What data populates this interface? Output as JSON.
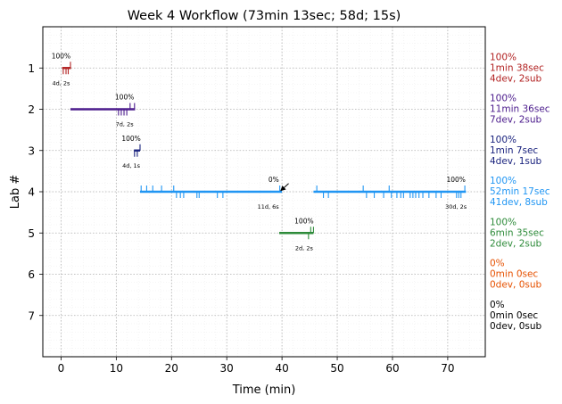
{
  "chart_data": {
    "type": "timeline",
    "title": "Week 4 Workflow (73min 13sec; 58d; 15s)",
    "xlabel": "Time (min)",
    "ylabel": "Lab #",
    "xlim": [
      -3.3,
      76.8
    ],
    "ylim": [
      8.0,
      0.0
    ],
    "xticks": [
      0,
      10,
      20,
      30,
      40,
      50,
      60,
      70
    ],
    "yticks": [
      1,
      2,
      3,
      4,
      5,
      6,
      7
    ],
    "grid": true,
    "labs": [
      {
        "lab": 1,
        "color": "#b22222",
        "segments": [
          [
            0.2,
            1.8
          ]
        ],
        "ticks": [
          {
            "x": 0.4,
            "dir": "down"
          },
          {
            "x": 0.9,
            "dir": "down"
          },
          {
            "x": 1.3,
            "dir": "down"
          },
          {
            "x": 1.7,
            "dir": "up"
          }
        ],
        "annotations": [
          {
            "text": "100%",
            "x": 0.0,
            "pos": "above"
          },
          {
            "text": "4d, 2s",
            "x": 0.0,
            "pos": "below"
          }
        ],
        "summary": [
          "100%",
          "1min 38sec",
          "4dev, 2sub"
        ]
      },
      {
        "lab": 2,
        "color": "#4b1b8c",
        "segments": [
          [
            1.7,
            13.4
          ]
        ],
        "ticks": [
          {
            "x": 10.4,
            "dir": "down"
          },
          {
            "x": 10.9,
            "dir": "down"
          },
          {
            "x": 11.4,
            "dir": "down"
          },
          {
            "x": 11.9,
            "dir": "down"
          },
          {
            "x": 12.5,
            "dir": "up"
          },
          {
            "x": 13.3,
            "dir": "up"
          }
        ],
        "annotations": [
          {
            "text": "100%",
            "x": 11.5,
            "pos": "above"
          },
          {
            "text": "7d, 2s",
            "x": 11.5,
            "pos": "below"
          }
        ],
        "summary": [
          "100%",
          "11min 36sec",
          "7dev, 2sub"
        ]
      },
      {
        "lab": 3,
        "color": "#1a237e",
        "segments": [
          [
            13.2,
            14.3
          ]
        ],
        "ticks": [
          {
            "x": 13.3,
            "dir": "down"
          },
          {
            "x": 13.8,
            "dir": "down"
          },
          {
            "x": 14.3,
            "dir": "up"
          }
        ],
        "annotations": [
          {
            "text": "100%",
            "x": 12.7,
            "pos": "above"
          },
          {
            "text": "4d, 1s",
            "x": 12.7,
            "pos": "below"
          }
        ],
        "summary": [
          "100%",
          "1min 7sec",
          "4dev, 1sub"
        ]
      },
      {
        "lab": 4,
        "color": "#2196f3",
        "segments": [
          [
            14.3,
            40.0
          ],
          [
            45.7,
            73.3
          ]
        ],
        "ticks": [
          {
            "x": 14.5,
            "dir": "up"
          },
          {
            "x": 15.5,
            "dir": "up"
          },
          {
            "x": 16.6,
            "dir": "up"
          },
          {
            "x": 18.2,
            "dir": "up"
          },
          {
            "x": 20.4,
            "dir": "up"
          },
          {
            "x": 20.9,
            "dir": "down"
          },
          {
            "x": 21.6,
            "dir": "down"
          },
          {
            "x": 22.2,
            "dir": "down"
          },
          {
            "x": 24.6,
            "dir": "down"
          },
          {
            "x": 25.0,
            "dir": "down"
          },
          {
            "x": 28.3,
            "dir": "down"
          },
          {
            "x": 29.3,
            "dir": "down"
          },
          {
            "x": 39.6,
            "dir": "up"
          },
          {
            "x": 46.3,
            "dir": "up"
          },
          {
            "x": 47.5,
            "dir": "down"
          },
          {
            "x": 48.4,
            "dir": "down"
          },
          {
            "x": 54.7,
            "dir": "up"
          },
          {
            "x": 55.3,
            "dir": "down"
          },
          {
            "x": 56.7,
            "dir": "down"
          },
          {
            "x": 58.4,
            "dir": "down"
          },
          {
            "x": 59.4,
            "dir": "up"
          },
          {
            "x": 59.8,
            "dir": "down"
          },
          {
            "x": 60.8,
            "dir": "down"
          },
          {
            "x": 61.5,
            "dir": "down"
          },
          {
            "x": 62.0,
            "dir": "down"
          },
          {
            "x": 63.2,
            "dir": "down"
          },
          {
            "x": 63.7,
            "dir": "down"
          },
          {
            "x": 64.2,
            "dir": "down"
          },
          {
            "x": 64.8,
            "dir": "down"
          },
          {
            "x": 65.5,
            "dir": "down"
          },
          {
            "x": 66.6,
            "dir": "down"
          },
          {
            "x": 67.9,
            "dir": "down"
          },
          {
            "x": 68.8,
            "dir": "down"
          },
          {
            "x": 71.6,
            "dir": "down"
          },
          {
            "x": 72.0,
            "dir": "down"
          },
          {
            "x": 72.4,
            "dir": "down"
          },
          {
            "x": 73.1,
            "dir": "up"
          }
        ],
        "annotations": [
          {
            "text": "0%",
            "x": 38.5,
            "pos": "above"
          },
          {
            "text": "11d, 6s",
            "x": 37.5,
            "pos": "below"
          },
          {
            "text": "100%",
            "x": 71.5,
            "pos": "above"
          },
          {
            "text": "30d, 2s",
            "x": 71.5,
            "pos": "below"
          }
        ],
        "arrow": {
          "from_x": 41.2,
          "from_y": 3.8,
          "to_x": 39.8,
          "to_y": 3.97
        },
        "summary": [
          "100%",
          "52min 17sec",
          "41dev, 8sub"
        ]
      },
      {
        "lab": 5,
        "color": "#2e8b3a",
        "segments": [
          [
            39.5,
            45.7
          ]
        ],
        "ticks": [
          {
            "x": 44.8,
            "dir": "down"
          },
          {
            "x": 45.2,
            "dir": "up"
          },
          {
            "x": 45.7,
            "dir": "up"
          }
        ],
        "annotations": [
          {
            "text": "100%",
            "x": 44.0,
            "pos": "above"
          },
          {
            "text": "2d, 2s",
            "x": 44.0,
            "pos": "below"
          }
        ],
        "summary": [
          "100%",
          "6min 35sec",
          "2dev, 2sub"
        ]
      },
      {
        "lab": 6,
        "color": "#e65100",
        "segments": [],
        "ticks": [],
        "annotations": [],
        "summary": [
          "0%",
          "0min 0sec",
          "0dev, 0sub"
        ]
      },
      {
        "lab": 7,
        "color": "#000000",
        "segments": [],
        "ticks": [],
        "annotations": [],
        "summary": [
          "0%",
          "0min 0sec",
          "0dev, 0sub"
        ]
      }
    ]
  }
}
